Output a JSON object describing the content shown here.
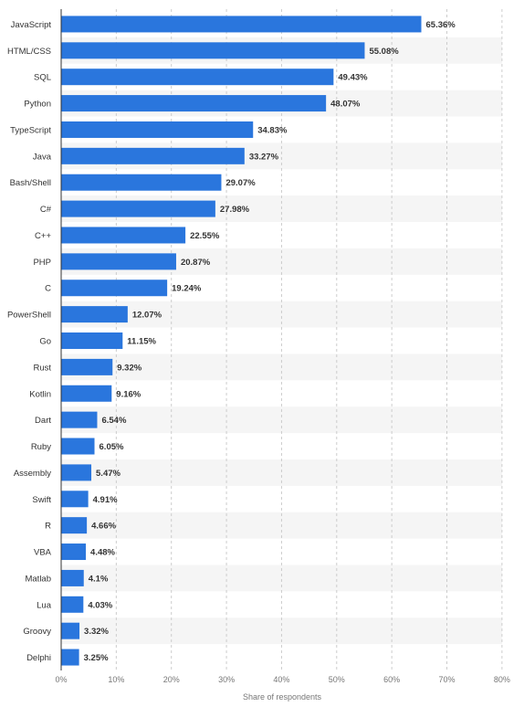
{
  "chart_data": {
    "type": "bar",
    "orientation": "horizontal",
    "title": "",
    "xlabel": "Share of respondents",
    "ylabel": "",
    "xlim": [
      0,
      80
    ],
    "x_ticks": [
      "0%",
      "10%",
      "20%",
      "30%",
      "40%",
      "50%",
      "60%",
      "70%",
      "80%"
    ],
    "grid": true,
    "legend": "none",
    "categories": [
      "JavaScript",
      "HTML/CSS",
      "SQL",
      "Python",
      "TypeScript",
      "Java",
      "Bash/Shell",
      "C#",
      "C++",
      "PHP",
      "C",
      "PowerShell",
      "Go",
      "Rust",
      "Kotlin",
      "Dart",
      "Ruby",
      "Assembly",
      "Swift",
      "R",
      "VBA",
      "Matlab",
      "Lua",
      "Groovy",
      "Delphi"
    ],
    "values": [
      65.36,
      55.08,
      49.43,
      48.07,
      34.83,
      33.27,
      29.07,
      27.98,
      22.55,
      20.87,
      19.24,
      12.07,
      11.15,
      9.32,
      9.16,
      6.54,
      6.05,
      5.47,
      4.91,
      4.66,
      4.48,
      4.1,
      4.03,
      3.32,
      3.25
    ],
    "value_labels": [
      "65.36%",
      "55.08%",
      "49.43%",
      "48.07%",
      "34.83%",
      "33.27%",
      "29.07%",
      "27.98%",
      "22.55%",
      "20.87%",
      "19.24%",
      "12.07%",
      "11.15%",
      "9.32%",
      "9.16%",
      "6.54%",
      "6.05%",
      "5.47%",
      "4.91%",
      "4.66%",
      "4.48%",
      "4.1%",
      "4.03%",
      "3.32%",
      "3.25%"
    ],
    "colors": {
      "bar": "#2a76dd",
      "alt_row": "#f5f5f5",
      "grid": "#cccccc",
      "axis": "#333333",
      "text": "#333333",
      "tick": "#777777"
    }
  }
}
